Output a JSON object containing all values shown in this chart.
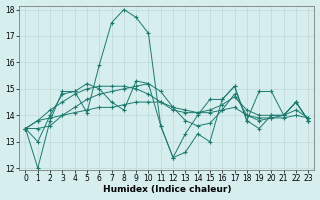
{
  "xlabel": "Humidex (Indice chaleur)",
  "background_color": "#d6eeee",
  "grid_color": "#c0d8d8",
  "line_color": "#1a7a6e",
  "x_values": [
    0,
    1,
    2,
    3,
    4,
    5,
    6,
    7,
    8,
    9,
    10,
    11,
    12,
    13,
    14,
    15,
    16,
    17,
    18,
    19,
    20,
    21,
    22,
    23
  ],
  "series": [
    [
      13.5,
      12.0,
      13.8,
      14.9,
      14.9,
      14.1,
      15.9,
      17.5,
      18.0,
      17.7,
      17.1,
      13.6,
      12.4,
      12.6,
      13.3,
      13.0,
      14.6,
      15.1,
      13.8,
      13.5,
      14.0,
      14.0,
      14.5,
      13.8
    ],
    [
      13.5,
      13.8,
      13.9,
      14.0,
      14.1,
      14.2,
      14.3,
      14.3,
      14.4,
      14.5,
      14.5,
      14.5,
      14.3,
      14.2,
      14.1,
      14.1,
      14.2,
      14.3,
      14.0,
      13.9,
      13.9,
      13.9,
      14.0,
      13.9
    ],
    [
      13.5,
      13.5,
      13.6,
      14.0,
      14.3,
      14.6,
      14.8,
      14.9,
      15.0,
      15.1,
      15.2,
      14.9,
      14.3,
      13.8,
      13.6,
      13.7,
      14.2,
      14.8,
      14.0,
      13.8,
      13.9,
      14.0,
      14.5,
      13.8
    ],
    [
      13.5,
      13.8,
      14.2,
      14.5,
      14.8,
      15.0,
      15.1,
      15.1,
      15.1,
      15.0,
      14.8,
      14.5,
      14.2,
      14.1,
      14.1,
      14.2,
      14.4,
      14.7,
      14.2,
      14.0,
      14.0,
      14.0,
      14.2,
      13.9
    ],
    [
      13.5,
      13.0,
      14.0,
      14.8,
      14.9,
      15.2,
      15.0,
      14.5,
      14.2,
      15.3,
      15.2,
      13.6,
      12.4,
      13.3,
      14.0,
      14.6,
      14.6,
      15.1,
      13.8,
      14.9,
      14.9,
      14.0,
      14.5,
      13.8
    ]
  ],
  "ylim": [
    12,
    18
  ],
  "yticks": [
    12,
    13,
    14,
    15,
    16,
    17,
    18
  ],
  "xlim": [
    -0.5,
    23.5
  ],
  "xticks": [
    0,
    1,
    2,
    3,
    4,
    5,
    6,
    7,
    8,
    9,
    10,
    11,
    12,
    13,
    14,
    15,
    16,
    17,
    18,
    19,
    20,
    21,
    22,
    23
  ]
}
